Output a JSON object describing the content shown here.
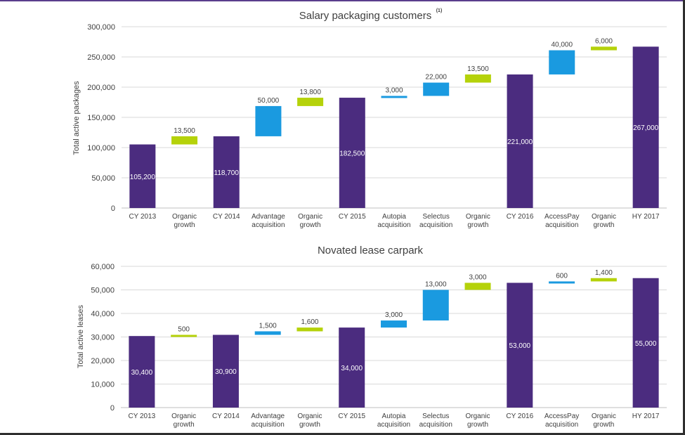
{
  "colors": {
    "total": "#4b2c7f",
    "acquisition": "#1a9ae0",
    "organic": "#b5d20a",
    "grid": "#d9d9d9",
    "axis_text": "#404040"
  },
  "chart_data": [
    {
      "type": "bar",
      "subtype": "waterfall",
      "title": "Salary packaging customers",
      "title_sup": "(1)",
      "xlabel": "",
      "ylabel": "Total active packages",
      "ylim": [
        0,
        300000
      ],
      "yticks": [
        0,
        50000,
        100000,
        150000,
        200000,
        250000,
        300000
      ],
      "ytick_labels": [
        "0",
        "50,000",
        "100,000",
        "150,000",
        "200,000",
        "250,000",
        "300,000"
      ],
      "grid": true,
      "bars": [
        {
          "category": [
            "CY 2013"
          ],
          "kind": "total",
          "start": 0,
          "end": 105200,
          "label": "105,200"
        },
        {
          "category": [
            "Organic",
            "growth"
          ],
          "kind": "organic",
          "start": 105200,
          "end": 118700,
          "label": "13,500"
        },
        {
          "category": [
            "CY 2014"
          ],
          "kind": "total",
          "start": 0,
          "end": 118700,
          "label": "118,700"
        },
        {
          "category": [
            "Advantage",
            "acquisition"
          ],
          "kind": "acquisition",
          "start": 118700,
          "end": 168700,
          "label": "50,000"
        },
        {
          "category": [
            "Organic",
            "growth"
          ],
          "kind": "organic",
          "start": 168700,
          "end": 182500,
          "label": "13,800"
        },
        {
          "category": [
            "CY 2015"
          ],
          "kind": "total",
          "start": 0,
          "end": 182500,
          "label": "182,500"
        },
        {
          "category": [
            "Autopia",
            "acquisition"
          ],
          "kind": "acquisition",
          "start": 182500,
          "end": 185500,
          "label": "3,000"
        },
        {
          "category": [
            "Selectus",
            "acquisition"
          ],
          "kind": "acquisition",
          "start": 185500,
          "end": 207500,
          "label": "22,000"
        },
        {
          "category": [
            "Organic",
            "growth"
          ],
          "kind": "organic",
          "start": 207500,
          "end": 221000,
          "label": "13,500"
        },
        {
          "category": [
            "CY 2016"
          ],
          "kind": "total",
          "start": 0,
          "end": 221000,
          "label": "221,000"
        },
        {
          "category": [
            "AccessPay",
            "acquisition"
          ],
          "kind": "acquisition",
          "start": 221000,
          "end": 261000,
          "label": "40,000"
        },
        {
          "category": [
            "Organic",
            "growth"
          ],
          "kind": "organic",
          "start": 261000,
          "end": 267000,
          "label": "6,000"
        },
        {
          "category": [
            "HY 2017"
          ],
          "kind": "total",
          "start": 0,
          "end": 267000,
          "label": "267,000"
        }
      ]
    },
    {
      "type": "bar",
      "subtype": "waterfall",
      "title": "Novated lease carpark",
      "xlabel": "",
      "ylabel": "Total active leases",
      "ylim": [
        0,
        60000
      ],
      "yticks": [
        0,
        10000,
        20000,
        30000,
        40000,
        50000,
        60000
      ],
      "ytick_labels": [
        "0",
        "10,000",
        "20,000",
        "30,000",
        "40,000",
        "50,000",
        "60,000"
      ],
      "grid": true,
      "bars": [
        {
          "category": [
            "CY 2013"
          ],
          "kind": "total",
          "start": 0,
          "end": 30400,
          "label": "30,400"
        },
        {
          "category": [
            "Organic",
            "growth"
          ],
          "kind": "organic",
          "start": 30400,
          "end": 30900,
          "label": "500"
        },
        {
          "category": [
            "CY 2014"
          ],
          "kind": "total",
          "start": 0,
          "end": 30900,
          "label": "30,900"
        },
        {
          "category": [
            "Advantage",
            "acquisition"
          ],
          "kind": "acquisition",
          "start": 30900,
          "end": 32400,
          "label": "1,500"
        },
        {
          "category": [
            "Organic",
            "growth"
          ],
          "kind": "organic",
          "start": 32400,
          "end": 34000,
          "label": "1,600"
        },
        {
          "category": [
            "CY 2015"
          ],
          "kind": "total",
          "start": 0,
          "end": 34000,
          "label": "34,000"
        },
        {
          "category": [
            "Autopia",
            "acquisition"
          ],
          "kind": "acquisition",
          "start": 34000,
          "end": 37000,
          "label": "3,000"
        },
        {
          "category": [
            "Selectus",
            "acquisition"
          ],
          "kind": "acquisition",
          "start": 37000,
          "end": 50000,
          "label": "13,000"
        },
        {
          "category": [
            "Organic",
            "growth"
          ],
          "kind": "organic",
          "start": 50000,
          "end": 53000,
          "label": "3,000"
        },
        {
          "category": [
            "CY 2016"
          ],
          "kind": "total",
          "start": 0,
          "end": 53000,
          "label": "53,000"
        },
        {
          "category": [
            "AccessPay",
            "acquisition"
          ],
          "kind": "acquisition",
          "start": 53000,
          "end": 53600,
          "label": "600"
        },
        {
          "category": [
            "Organic",
            "growth"
          ],
          "kind": "organic",
          "start": 53600,
          "end": 55000,
          "label": "1,400"
        },
        {
          "category": [
            "HY 2017"
          ],
          "kind": "total",
          "start": 0,
          "end": 55000,
          "label": "55,000"
        }
      ]
    }
  ]
}
